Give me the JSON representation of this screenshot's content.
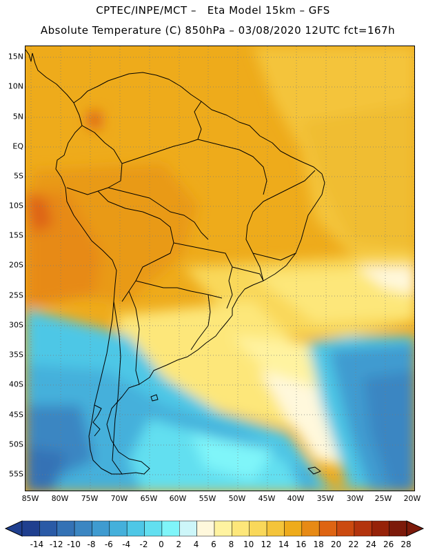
{
  "header": {
    "line1": "CPTEC/INPE/MCT –   Eta Model 15km – GFS",
    "line2": "Absolute Temperature (C) 850hPa – 03/08/2020 12UTC fct=167h"
  },
  "map": {
    "lat_labels": [
      "15N",
      "10N",
      "5N",
      "EQ",
      "5S",
      "10S",
      "15S",
      "20S",
      "25S",
      "30S",
      "35S",
      "40S",
      "45S",
      "50S",
      "55S"
    ],
    "lon_labels": [
      "85W",
      "80W",
      "75W",
      "70W",
      "65W",
      "60W",
      "55W",
      "50W",
      "45W",
      "40W",
      "35W",
      "30W",
      "25W",
      "20W"
    ]
  },
  "colorbar": {
    "labels": [
      "-14",
      "-12",
      "-10",
      "-8",
      "-6",
      "-4",
      "-2",
      "0",
      "2",
      "4",
      "6",
      "8",
      "10",
      "12",
      "14",
      "16",
      "18",
      "20",
      "22",
      "24",
      "26",
      "28"
    ],
    "colors": [
      "#1f3f8f",
      "#2a5aa6",
      "#3472b5",
      "#3b86c2",
      "#3f9bd0",
      "#44b0db",
      "#4ec7e6",
      "#62dff0",
      "#7ff5f9",
      "#cdf6f9",
      "#fff8dc",
      "#fff3a0",
      "#fde77a",
      "#f9d85a",
      "#f4c43a",
      "#eeab1b",
      "#e78a15",
      "#de6412",
      "#cb4a10",
      "#b3340d",
      "#962208",
      "#7c1a0a"
    ]
  }
}
